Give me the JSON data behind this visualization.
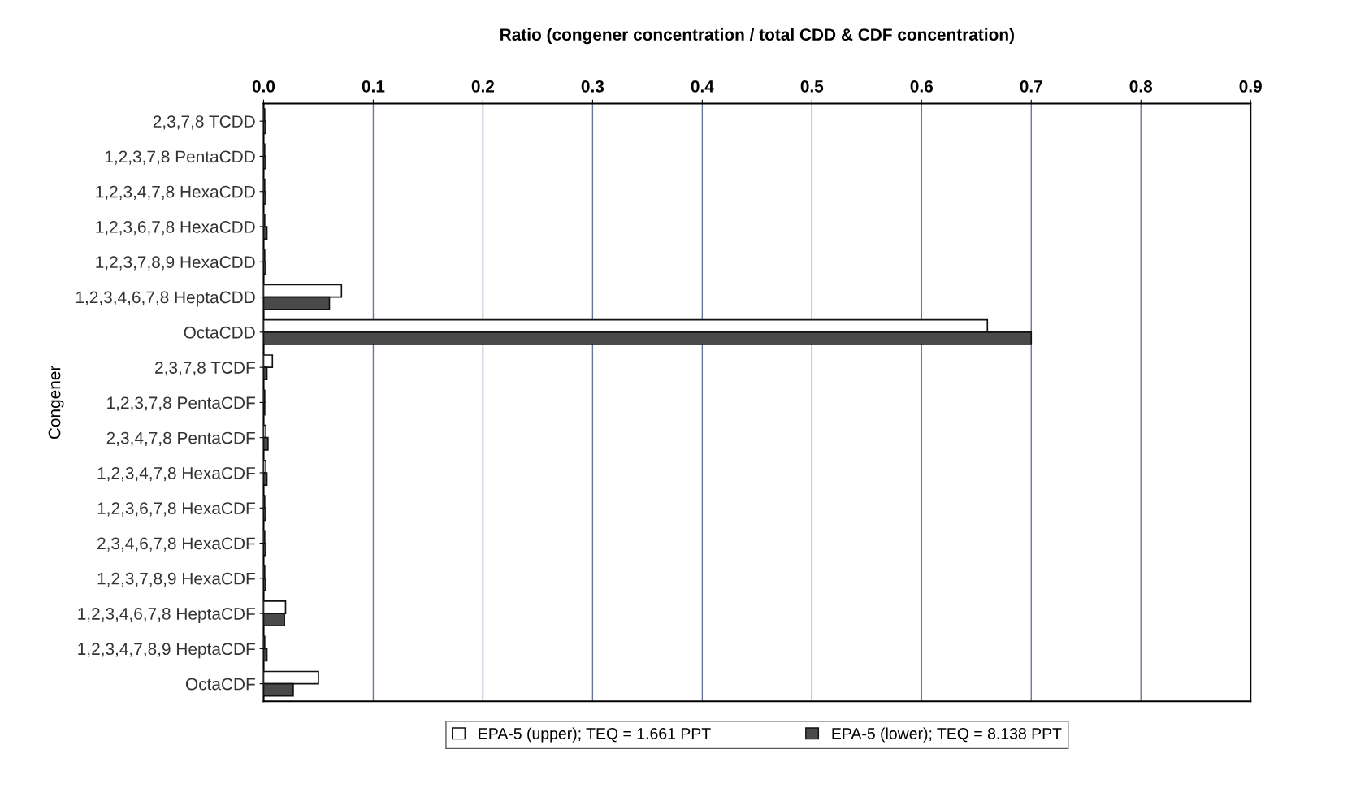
{
  "chart_data": {
    "type": "bar",
    "orientation": "horizontal",
    "xlabel": "Ratio (congener concentration / total CDD & CDF concentration)",
    "ylabel": "Congener",
    "categories": [
      "2,3,7,8 TCDD",
      "1,2,3,7,8 PentaCDD",
      "1,2,3,4,7,8 HexaCDD",
      "1,2,3,6,7,8 HexaCDD",
      "1,2,3,7,8,9 HexaCDD",
      "1,2,3,4,6,7,8 HeptaCDD",
      "OctaCDD",
      "2,3,7,8 TCDF",
      "1,2,3,7,8 PentaCDF",
      "2,3,4,7,8 PentaCDF",
      "1,2,3,4,7,8 HexaCDF",
      "1,2,3,6,7,8 HexaCDF",
      "2,3,4,6,7,8 HexaCDF",
      "1,2,3,7,8,9 HexaCDF",
      "1,2,3,4,6,7,8 HeptaCDF",
      "1,2,3,4,7,8,9 HeptaCDF",
      "OctaCDF"
    ],
    "series": [
      {
        "name": "EPA-5 (upper); TEQ = 1.661 PPT",
        "color": "#ffffff",
        "values": [
          0.001,
          0.001,
          0.001,
          0.001,
          0.001,
          0.071,
          0.66,
          0.008,
          0.001,
          0.002,
          0.002,
          0.001,
          0.001,
          0.001,
          0.02,
          0.001,
          0.05
        ]
      },
      {
        "name": "EPA-5 (lower); TEQ = 8.138 PPT",
        "color": "#4a4a4a",
        "values": [
          0.002,
          0.002,
          0.002,
          0.003,
          0.002,
          0.06,
          0.7,
          0.003,
          0.001,
          0.004,
          0.003,
          0.002,
          0.002,
          0.002,
          0.019,
          0.003,
          0.027
        ]
      }
    ],
    "xlim": [
      0,
      0.9
    ],
    "xticks": [
      {
        "value": 0,
        "label": "0.0"
      },
      0.1,
      0.2,
      0.3,
      0.4,
      0.5,
      0.6,
      0.7,
      0.8,
      0.9
    ],
    "grid": "x",
    "legend": "bottom"
  }
}
